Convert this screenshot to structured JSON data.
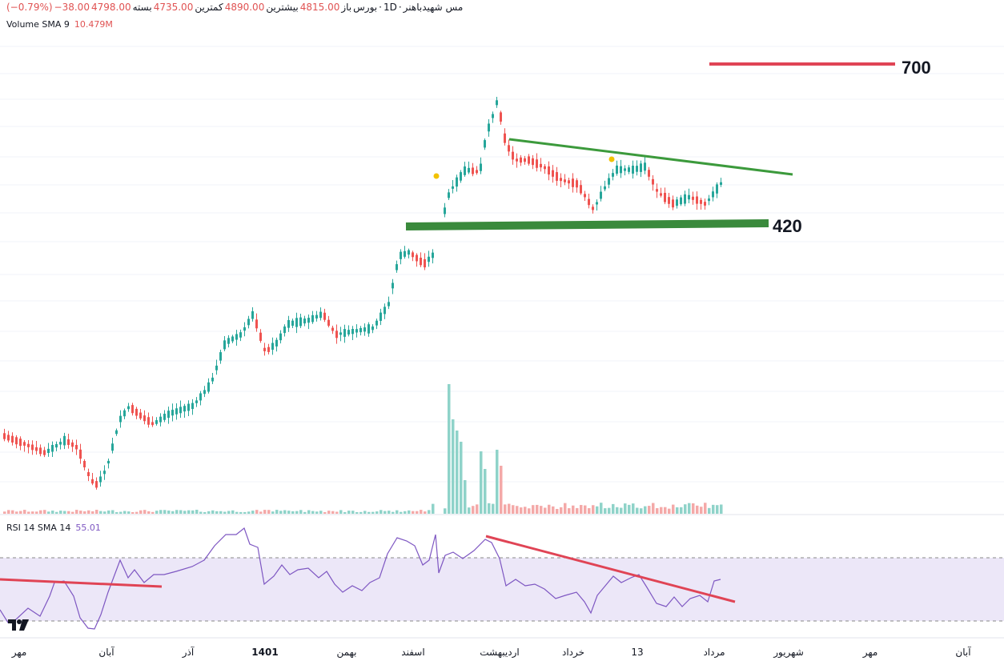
{
  "header": {
    "symbol": "مس شهیدباهنر",
    "timeframe": "1D",
    "exchange": "بورس",
    "open_label": "باز",
    "open_value": "4815.00",
    "high_label": "بیشترین",
    "high_value": "4890.00",
    "low_label": "کمترین",
    "low_value": "4735.00",
    "close_label": "بسته",
    "close_value": "4798.00",
    "change_value": "−38.00",
    "change_pct": "(−0.79%)"
  },
  "volume_legend": {
    "label": "Volume SMA 9",
    "value": "10.479M"
  },
  "rsi_legend": {
    "label": "RSI 14 SMA 14",
    "value": "55.01"
  },
  "colors": {
    "up": "#26a69a",
    "down": "#ef5350",
    "vol_up": "#8fd3c9",
    "vol_down": "#f4a9a8",
    "rsi_line": "#7e57c2",
    "rsi_band": "#ece7f8",
    "trend_green": "#2e8b3a",
    "support_green": "#3a8a3c",
    "trend_red": "#e04455"
  },
  "chart_data": {
    "type": "candlestick",
    "x_axis_labels": [
      "مهر",
      "آبان",
      "آذر",
      "1401",
      "بهمن",
      "اسفند",
      "اردیبهشت",
      "خرداد",
      "13",
      "مرداد",
      "شهریور",
      "مهر",
      "آبان"
    ],
    "annotations": {
      "level_700": "700",
      "level_420": "420"
    },
    "rsi": {
      "upper_band": 70,
      "lower_band": 30
    }
  }
}
